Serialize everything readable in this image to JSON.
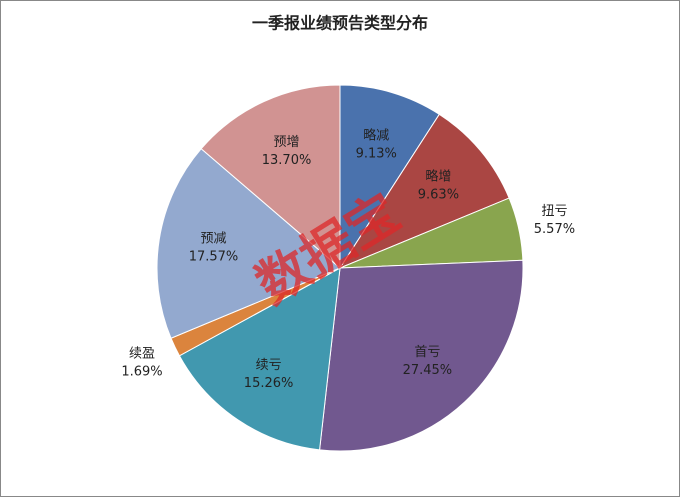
{
  "chart_data": {
    "type": "pie",
    "title": "一季报业绩预告类型分布",
    "categories": [
      "略减",
      "略增",
      "扭亏",
      "首亏",
      "续亏",
      "续盈",
      "预减",
      "预增"
    ],
    "values": [
      9.13,
      9.63,
      5.57,
      27.45,
      15.26,
      1.69,
      17.57,
      13.7
    ],
    "value_labels": [
      "9.13%",
      "9.63%",
      "5.57%",
      "27.45%",
      "15.26%",
      "1.69%",
      "17.57%",
      "13.70%"
    ],
    "colors": [
      "#4a72ad",
      "#aa4643",
      "#89a54e",
      "#71588f",
      "#4198af",
      "#db843d",
      "#93a9cf",
      "#d19392"
    ],
    "watermark": "数据宝"
  }
}
